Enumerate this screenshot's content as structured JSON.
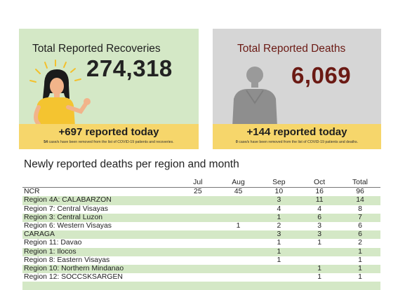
{
  "recoveries": {
    "title": "Total Reported Recoveries",
    "total": "274,318",
    "today_value": "+697",
    "today_label": "reported today",
    "note_count": "54",
    "note_text": "case/s have been removed from the list of COVID-19 patients and recoveries."
  },
  "deaths": {
    "title": "Total Reported Deaths",
    "total": "6,069",
    "today_value": "+144",
    "today_label": "reported today",
    "note_count": "0",
    "note_text": "case/s have been removed from the list of COVID-19 patients and deaths."
  },
  "table": {
    "title": "Newly reported deaths per region and month",
    "columns": [
      "",
      "Jul",
      "Aug",
      "Sep",
      "Oct",
      "Total"
    ],
    "rows": [
      [
        "NCR",
        "25",
        "45",
        "10",
        "16",
        "96"
      ],
      [
        "Region 4A: CALABARZON",
        "",
        "",
        "3",
        "11",
        "14"
      ],
      [
        "Region 7: Central Visayas",
        "",
        "",
        "4",
        "4",
        "8"
      ],
      [
        "Region 3: Central Luzon",
        "",
        "",
        "1",
        "6",
        "7"
      ],
      [
        "Region 6: Western Visayas",
        "",
        "1",
        "2",
        "3",
        "6"
      ],
      [
        "CARAGA",
        "",
        "",
        "3",
        "3",
        "6"
      ],
      [
        "Region 11: Davao",
        "",
        "",
        "1",
        "1",
        "2"
      ],
      [
        "Region 1: Ilocos",
        "",
        "",
        "1",
        "",
        "1"
      ],
      [
        "Region 8: Eastern Visayas",
        "",
        "",
        "1",
        "",
        "1"
      ],
      [
        "Region 10: Northern Mindanao",
        "",
        "",
        "",
        "1",
        "1"
      ],
      [
        "Region 12: SOCCSKSARGEN",
        "",
        "",
        "",
        "1",
        "1"
      ],
      [
        "",
        "",
        "",
        "",
        "",
        ""
      ]
    ]
  },
  "colors": {
    "recoveries_bg": "#d4e8c6",
    "deaths_bg": "#d6d6d6",
    "strip": "#f6d66b",
    "death_accent": "#6b1a14"
  }
}
